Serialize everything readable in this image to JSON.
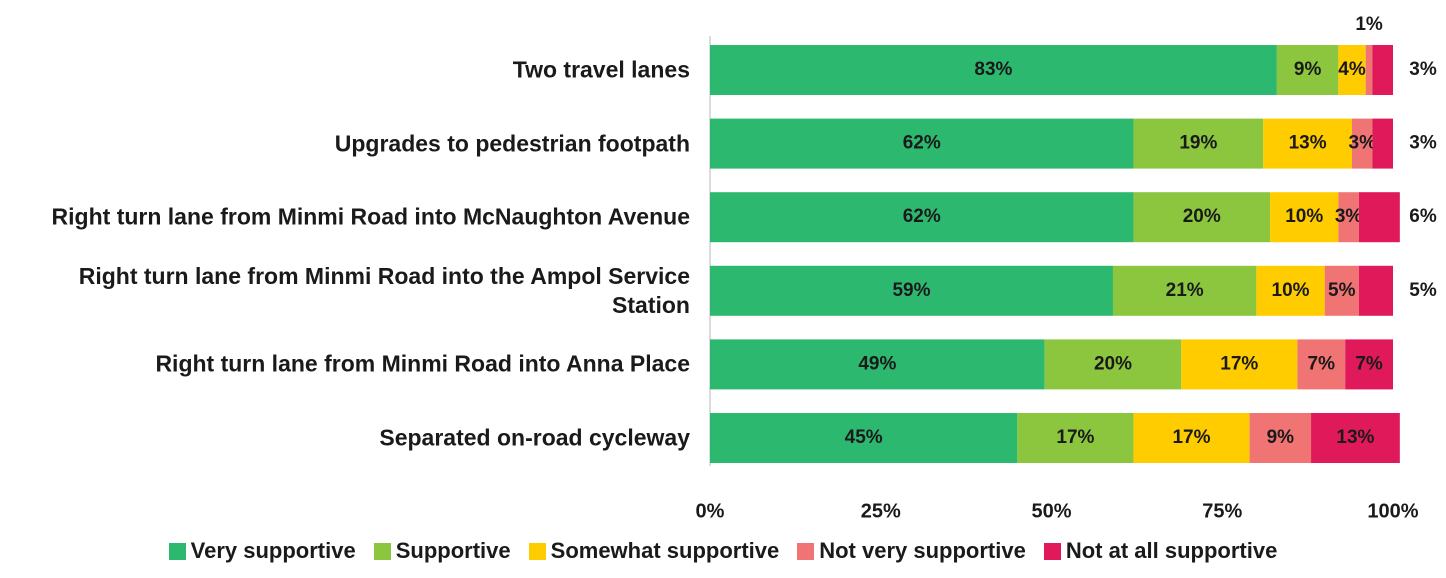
{
  "chart_data": {
    "type": "bar",
    "orientation": "horizontal",
    "stacked": true,
    "categories": [
      "Two travel lanes",
      "Upgrades to pedestrian footpath",
      "Right turn lane from Minmi Road into McNaughton Avenue",
      "Right turn lane from Minmi Road into the Ampol Service Station",
      "Right turn lane from Minmi Road into Anna Place",
      "Separated on-road cycleway"
    ],
    "series": [
      {
        "name": "Very supportive",
        "color": "#2db870",
        "values": [
          83,
          62,
          62,
          59,
          49,
          45
        ],
        "value_labels": [
          "83%",
          "62%",
          "62%",
          "59%",
          "49%",
          "45%"
        ]
      },
      {
        "name": "Supportive",
        "color": "#8cc63f",
        "values": [
          9,
          19,
          20,
          21,
          20,
          17
        ],
        "value_labels": [
          "9%",
          "19%",
          "20%",
          "21%",
          "20%",
          "17%"
        ]
      },
      {
        "name": "Somewhat supportive",
        "color": "#ffcc00",
        "values": [
          4,
          13,
          10,
          10,
          17,
          17
        ],
        "value_labels": [
          "4%",
          "13%",
          "10%",
          "10%",
          "17%",
          "17%"
        ]
      },
      {
        "name": "Not very supportive",
        "color": "#f07474",
        "values": [
          1,
          3,
          3,
          5,
          7,
          9
        ],
        "value_labels": [
          "1%",
          "3%",
          "3%",
          "5%",
          "7%",
          "9%"
        ]
      },
      {
        "name": "Not at all supportive",
        "color": "#e01a5a",
        "values": [
          3,
          3,
          6,
          5,
          7,
          13
        ],
        "value_labels": [
          "3%",
          "3%",
          "6%",
          "5%",
          "7%",
          "13%"
        ]
      }
    ],
    "xlim": [
      0,
      100
    ],
    "xticks": [
      {
        "value": 0,
        "label": "0%"
      },
      {
        "value": 25,
        "label": "25%"
      },
      {
        "value": 50,
        "label": "50%"
      },
      {
        "value": 75,
        "label": "75%"
      },
      {
        "value": 100,
        "label": "100%"
      }
    ],
    "legend": "bottom"
  }
}
